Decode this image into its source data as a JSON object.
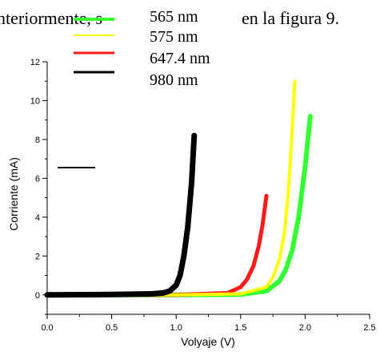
{
  "context_text": {
    "left": "nteriormente, s",
    "right": "en la figura 9."
  },
  "chart_data": {
    "type": "line",
    "title": "",
    "xlabel": "Volyaje (V)",
    "ylabel": "Corriente (mA)",
    "xlim": [
      0,
      2.5
    ],
    "ylim": [
      -1,
      12
    ],
    "xticks": [
      0.0,
      0.5,
      1.0,
      1.5,
      2.0,
      2.5
    ],
    "xtick_labels": [
      "0.0",
      "0.5",
      "1.0",
      "1.5",
      "2.0",
      "2.5"
    ],
    "yticks": [
      0,
      2,
      4,
      6,
      8,
      10,
      12
    ],
    "ytick_labels": [
      "0",
      "2",
      "4",
      "6",
      "8",
      "10",
      "12"
    ],
    "grid": false,
    "legend_position": "top-left",
    "series": [
      {
        "name": "565 nm",
        "color": "#33ff33",
        "x": [
          0.0,
          0.5,
          1.0,
          1.5,
          1.7,
          1.8,
          1.85,
          1.9,
          1.95,
          2.0,
          2.04
        ],
        "y": [
          0.0,
          0.0,
          0.0,
          0.02,
          0.2,
          0.7,
          1.3,
          2.3,
          4.0,
          6.6,
          9.2
        ]
      },
      {
        "name": "575 nm",
        "color": "#ffff00",
        "x": [
          0.0,
          0.5,
          1.0,
          1.5,
          1.7,
          1.75,
          1.8,
          1.84,
          1.87,
          1.9,
          1.92
        ],
        "y": [
          0.0,
          0.0,
          0.0,
          0.05,
          0.4,
          0.9,
          1.8,
          3.2,
          5.3,
          8.5,
          11.0
        ]
      },
      {
        "name": "647.4 nm",
        "color": "#ff1a1a",
        "x": [
          0.0,
          0.5,
          1.0,
          1.4,
          1.5,
          1.55,
          1.6,
          1.64,
          1.67,
          1.7
        ],
        "y": [
          0.0,
          0.0,
          0.0,
          0.1,
          0.4,
          0.8,
          1.5,
          2.5,
          3.6,
          5.1
        ]
      },
      {
        "name": "980 nm",
        "color": "#000000",
        "x": [
          0.0,
          0.5,
          0.8,
          0.9,
          0.95,
          1.0,
          1.03,
          1.06,
          1.09,
          1.12,
          1.14
        ],
        "y": [
          0.0,
          0.02,
          0.05,
          0.1,
          0.2,
          0.5,
          1.0,
          2.0,
          3.5,
          5.8,
          8.2
        ]
      }
    ]
  }
}
